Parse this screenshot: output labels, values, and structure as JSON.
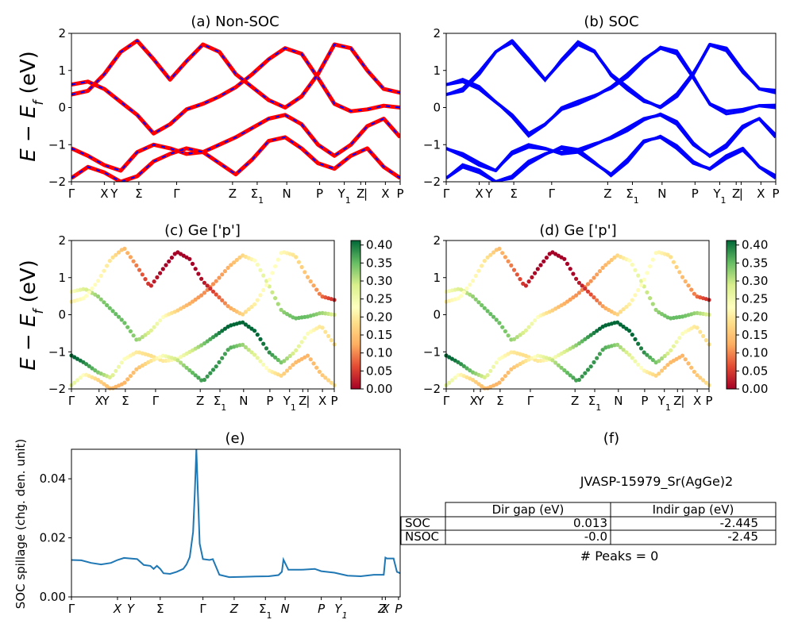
{
  "figure": {
    "ylabel_energy": "E − E_f (eV)",
    "k_ticks": [
      "Γ",
      "X",
      "Y",
      "Σ",
      "Γ",
      "Z",
      "Σ1",
      "N",
      "P",
      "Y1",
      "Z",
      "|",
      "X",
      "P"
    ]
  },
  "chart_data": [
    {
      "id": "a",
      "type": "line",
      "title": "(a) Non-SOC",
      "ylabel": "E − E_f (eV)",
      "ylim": [
        -2,
        2
      ],
      "yticks": [
        "2",
        "1",
        "0",
        "−1",
        "−2"
      ],
      "series": [
        {
          "name": "",
          "color": "#ff0000",
          "style": "solid"
        },
        {
          "name": "",
          "color": "#0000ff",
          "style": "dashed"
        }
      ],
      "x": [
        0.0,
        0.05,
        0.1,
        0.15,
        0.2,
        0.25,
        0.3,
        0.35,
        0.4,
        0.45,
        0.5,
        0.55,
        0.6,
        0.65,
        0.7,
        0.75,
        0.8,
        0.85,
        0.9,
        0.95,
        1.0
      ],
      "bands": [
        [
          0.62,
          0.7,
          0.5,
          0.15,
          -0.2,
          -0.7,
          -0.45,
          -0.05,
          0.1,
          0.3,
          0.55,
          0.9,
          1.3,
          1.6,
          1.45,
          0.8,
          0.1,
          -0.1,
          -0.05,
          0.05,
          0.0
        ],
        [
          0.35,
          0.45,
          0.9,
          1.5,
          1.8,
          1.3,
          0.75,
          1.25,
          1.7,
          1.5,
          0.9,
          0.55,
          0.2,
          0.0,
          0.3,
          0.9,
          1.7,
          1.6,
          1.0,
          0.5,
          0.4
        ],
        [
          -1.1,
          -1.3,
          -1.55,
          -1.7,
          -1.2,
          -1.0,
          -1.1,
          -1.25,
          -1.2,
          -1.0,
          -0.8,
          -0.55,
          -0.3,
          -0.2,
          -0.45,
          -1.0,
          -1.3,
          -1.0,
          -0.5,
          -0.3,
          -0.8
        ],
        [
          -1.9,
          -1.6,
          -1.75,
          -2.0,
          -1.85,
          -1.45,
          -1.25,
          -1.1,
          -1.2,
          -1.5,
          -1.8,
          -1.4,
          -0.9,
          -0.8,
          -1.1,
          -1.5,
          -1.65,
          -1.3,
          -1.1,
          -1.6,
          -1.9
        ]
      ],
      "ticks": [
        "Γ",
        "XY",
        "Σ",
        "Γ",
        "Z",
        "Σ1",
        "N",
        "P",
        "Y1",
        "Z | X",
        "P"
      ]
    },
    {
      "id": "b",
      "type": "line",
      "title": "(b) SOC",
      "ylim": [
        -2,
        2
      ],
      "yticks": [
        "2",
        "1",
        "0",
        "−1",
        "−2"
      ],
      "series": [
        {
          "name": "",
          "color": "#0000ff",
          "style": "solid"
        }
      ],
      "ticks": [
        "Γ",
        "XY",
        "Σ",
        "Γ",
        "Z",
        "Σ1",
        "N",
        "P",
        "Y1",
        "Z | X",
        "P"
      ]
    },
    {
      "id": "c",
      "type": "scatter",
      "title": "(c)  Ge ['p']",
      "ylabel": "E − E_f (eV)",
      "ylim": [
        -2,
        2
      ],
      "yticks": [
        "2",
        "1",
        "0",
        "−1",
        "−2"
      ],
      "colorbar": {
        "min": 0.0,
        "max": 0.4,
        "ticks": [
          "0.00",
          "0.05",
          "0.10",
          "0.15",
          "0.20",
          "0.25",
          "0.30",
          "0.35",
          "0.40"
        ]
      },
      "ticks": [
        "Γ",
        "XY",
        "Σ",
        "Γ",
        "Z",
        "Σ1",
        "N",
        "P",
        "Y1",
        "Z | X",
        "P"
      ]
    },
    {
      "id": "d",
      "type": "scatter",
      "title": "(d) Ge ['p']",
      "ylim": [
        -2,
        2
      ],
      "yticks": [
        "2",
        "1",
        "0",
        "−1",
        "−2"
      ],
      "colorbar": {
        "min": 0.0,
        "max": 0.4,
        "ticks": [
          "0.00",
          "0.05",
          "0.10",
          "0.15",
          "0.20",
          "0.25",
          "0.30",
          "0.35",
          "0.40"
        ]
      },
      "ticks": [
        "Γ",
        "XY",
        "Σ",
        "Γ",
        "Z",
        "Σ1",
        "N",
        "P",
        "Y1",
        "Z | X",
        "P"
      ]
    },
    {
      "id": "e",
      "type": "line",
      "title": "(e)",
      "ylabel": "SOC spillage (chg. den. unit)",
      "ylim": [
        0,
        0.05
      ],
      "yticks": [
        "0.00",
        "0.02",
        "0.04"
      ],
      "ticks": [
        "Γ",
        "X",
        "Y",
        "Σ",
        "Γ",
        "Z",
        "Σ1",
        "N",
        "P",
        "Y1",
        "Z",
        "X",
        "P"
      ],
      "x": [
        0.0,
        0.03,
        0.06,
        0.09,
        0.12,
        0.14,
        0.16,
        0.18,
        0.2,
        0.22,
        0.24,
        0.25,
        0.26,
        0.27,
        0.28,
        0.3,
        0.32,
        0.34,
        0.35,
        0.36,
        0.37,
        0.375,
        0.38,
        0.39,
        0.4,
        0.42,
        0.43,
        0.45,
        0.48,
        0.52,
        0.56,
        0.6,
        0.63,
        0.64,
        0.645,
        0.66,
        0.7,
        0.74,
        0.76,
        0.8,
        0.84,
        0.88,
        0.92,
        0.95,
        0.955,
        0.96,
        0.98,
        0.99,
        1.0
      ],
      "values": [
        0.0125,
        0.0124,
        0.0115,
        0.011,
        0.0115,
        0.0125,
        0.0132,
        0.013,
        0.0128,
        0.0108,
        0.0105,
        0.0095,
        0.0105,
        0.0095,
        0.008,
        0.0078,
        0.0085,
        0.0095,
        0.011,
        0.0135,
        0.022,
        0.035,
        0.05,
        0.018,
        0.0128,
        0.0125,
        0.0128,
        0.0075,
        0.0067,
        0.0068,
        0.0069,
        0.007,
        0.0074,
        0.0085,
        0.0126,
        0.0092,
        0.0092,
        0.0095,
        0.0087,
        0.0082,
        0.0072,
        0.007,
        0.0075,
        0.0075,
        0.0133,
        0.013,
        0.013,
        0.0085,
        0.008
      ]
    },
    {
      "id": "f",
      "type": "table",
      "title": "(f)",
      "subtitle": "JVASP-15979_Sr(AgGe)2",
      "columns": [
        "",
        "Dir gap (eV)",
        "Indir gap (eV)"
      ],
      "rows": [
        [
          "SOC",
          "0.013",
          "-2.445"
        ],
        [
          "NSOC",
          "-0.0",
          "-2.45"
        ]
      ],
      "footer": "# Peaks = 0"
    }
  ]
}
